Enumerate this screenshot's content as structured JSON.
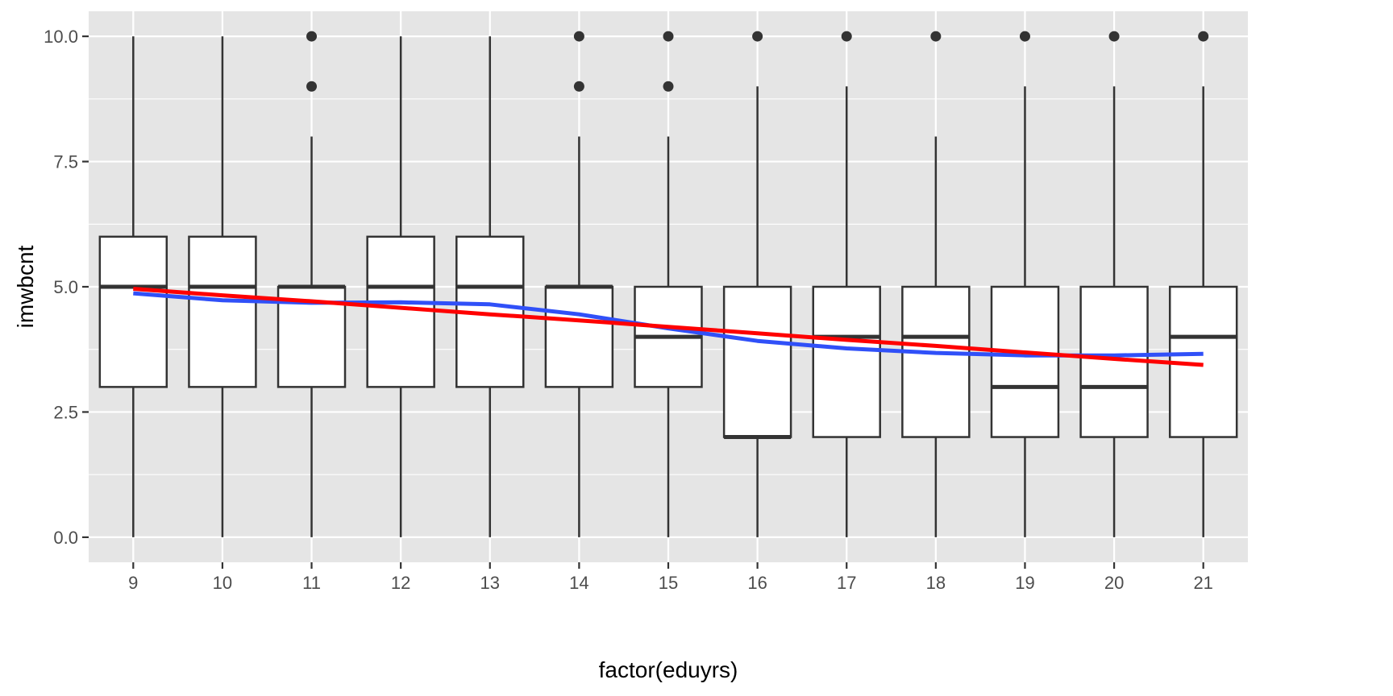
{
  "chart_data": {
    "type": "box",
    "title": "",
    "xlabel": "factor(eduyrs)",
    "ylabel": "imwbcnt",
    "categories": [
      "9",
      "10",
      "11",
      "12",
      "13",
      "14",
      "15",
      "16",
      "17",
      "18",
      "19",
      "20",
      "21"
    ],
    "ylim": [
      -0.5,
      10.5
    ],
    "yticks": [
      0.0,
      2.5,
      5.0,
      7.5,
      10.0
    ],
    "ytick_labels": [
      "0.0",
      "2.5",
      "5.0",
      "7.5",
      "10.0"
    ],
    "grid": true,
    "legend": "none",
    "boxes": [
      {
        "category": "9",
        "min": 0,
        "q1": 3,
        "median": 5,
        "q3": 6,
        "max": 10,
        "outliers": []
      },
      {
        "category": "10",
        "min": 0,
        "q1": 3,
        "median": 5,
        "q3": 6,
        "max": 10,
        "outliers": []
      },
      {
        "category": "11",
        "min": 0,
        "q1": 3,
        "median": 5,
        "q3": 5,
        "max": 8,
        "outliers": [
          9,
          10
        ]
      },
      {
        "category": "12",
        "min": 0,
        "q1": 3,
        "median": 5,
        "q3": 6,
        "max": 10,
        "outliers": []
      },
      {
        "category": "13",
        "min": 0,
        "q1": 3,
        "median": 5,
        "q3": 6,
        "max": 10,
        "outliers": []
      },
      {
        "category": "14",
        "min": 0,
        "q1": 3,
        "median": 5,
        "q3": 5,
        "max": 8,
        "outliers": [
          9,
          10
        ]
      },
      {
        "category": "15",
        "min": 0,
        "q1": 3,
        "median": 4,
        "q3": 5,
        "max": 8,
        "outliers": [
          9,
          10
        ]
      },
      {
        "category": "16",
        "min": 0,
        "q1": 2,
        "median": 2,
        "q3": 5,
        "max": 9,
        "outliers": [
          10
        ]
      },
      {
        "category": "17",
        "min": 0,
        "q1": 2,
        "median": 4,
        "q3": 5,
        "max": 9,
        "outliers": [
          10
        ]
      },
      {
        "category": "18",
        "min": 0,
        "q1": 2,
        "median": 4,
        "q3": 5,
        "max": 8,
        "outliers": [
          10
        ]
      },
      {
        "category": "19",
        "min": 0,
        "q1": 2,
        "median": 3,
        "q3": 5,
        "max": 9,
        "outliers": [
          10
        ]
      },
      {
        "category": "20",
        "min": 0,
        "q1": 2,
        "median": 3,
        "q3": 5,
        "max": 9,
        "outliers": [
          10
        ]
      },
      {
        "category": "21",
        "min": 0,
        "q1": 2,
        "median": 4,
        "q3": 5,
        "max": 9,
        "outliers": [
          10
        ]
      }
    ],
    "lines": [
      {
        "type": "smooth",
        "color": "#3050f8",
        "values": [
          4.87,
          4.73,
          4.68,
          4.69,
          4.65,
          4.45,
          4.17,
          3.92,
          3.77,
          3.68,
          3.63,
          3.63,
          3.66
        ]
      },
      {
        "type": "linear",
        "color": "#ff0000",
        "values": [
          4.96,
          4.83,
          4.71,
          4.58,
          4.45,
          4.33,
          4.2,
          4.07,
          3.94,
          3.82,
          3.69,
          3.56,
          3.44
        ]
      }
    ],
    "colors": {
      "panel": "#e5e5e5",
      "grid": "#ffffff",
      "box_fill": "#ffffff",
      "box_stroke": "#333333",
      "outlier": "#333333"
    }
  }
}
